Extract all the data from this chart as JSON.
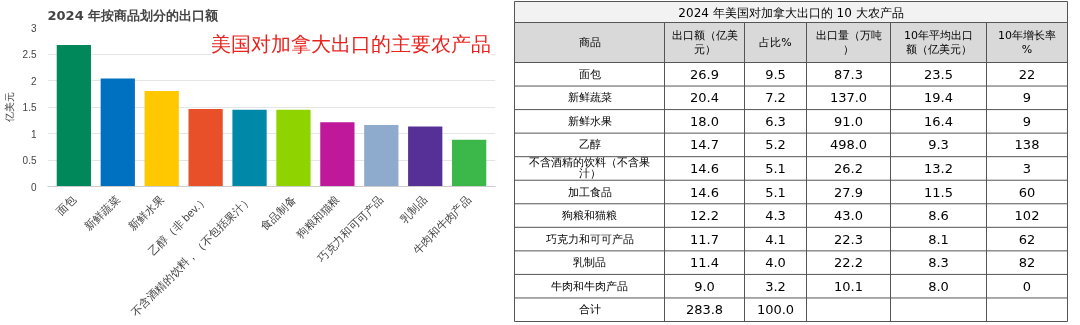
{
  "chart_data": [
    {
      "type": "bar",
      "title": "2024 年按商品划分的出口额",
      "ylabel": "亿美元",
      "categories": [
        "面包",
        "新鲜蔬菜",
        "新鲜水果",
        "乙醇（非 bev.）",
        "不含酒精的饮料，（不包括果汁）",
        "食品制备",
        "狗粮和猫粮",
        "巧克力和可可产品",
        "乳制品",
        "牛肉和牛肉产品"
      ],
      "values": [
        2.67,
        2.04,
        1.8,
        1.46,
        1.45,
        1.45,
        1.21,
        1.16,
        1.13,
        0.88
      ],
      "colors": [
        "#00875a",
        "#0070c0",
        "#ffc800",
        "#e8502a",
        "#0088a8",
        "#8fd400",
        "#c0189a",
        "#8eaacc",
        "#563096",
        "#3cb84a"
      ],
      "ylim": [
        0,
        3
      ],
      "yticks": [
        0,
        0.5,
        1,
        1.5,
        2,
        2.5,
        3
      ],
      "grid": "y",
      "annotations": [
        "美国对加拿大出口的主要农产品"
      ]
    },
    {
      "type": "heatmap",
      "title": "2024 年美国对加拿大出口的 10 大农产品",
      "ylabel": "商品",
      "categories": [
        "出口额（亿美元）",
        "占比%",
        "出口量（万吨）",
        "10年平均出口额（亿美元）",
        "10年增长率%"
      ],
      "y_categories": [
        "面包",
        "新鲜蔬菜",
        "新鲜水果",
        "乙醇",
        "不含酒精的饮料（不含果汁）",
        "加工食品",
        "狗粮和猫粮",
        "巧克力和可可产品",
        "乳制品",
        "牛肉和牛肉产品",
        "合计"
      ],
      "cells": [
        [
          26.9,
          9.5,
          87.3,
          23.5,
          22
        ],
        [
          20.4,
          7.2,
          137.0,
          19.4,
          9
        ],
        [
          18.0,
          6.3,
          91.0,
          16.4,
          9
        ],
        [
          14.7,
          5.2,
          498.0,
          9.3,
          138
        ],
        [
          14.6,
          5.1,
          26.2,
          13.2,
          3
        ],
        [
          14.6,
          5.1,
          27.9,
          11.5,
          60
        ],
        [
          12.2,
          4.3,
          43.0,
          8.6,
          102
        ],
        [
          11.7,
          4.1,
          22.3,
          8.1,
          62
        ],
        [
          11.4,
          4.0,
          22.2,
          8.3,
          82
        ],
        [
          9.0,
          3.2,
          10.1,
          8.0,
          0
        ],
        [
          283.8,
          100.0,
          null,
          null,
          null
        ]
      ],
      "cell_labels": [
        [
          "26.9",
          "9.5",
          "87.3",
          "23.5",
          "22"
        ],
        [
          "20.4",
          "7.2",
          "137.0",
          "19.4",
          "9"
        ],
        [
          "18.0",
          "6.3",
          "91.0",
          "16.4",
          "9"
        ],
        [
          "14.7",
          "5.2",
          "498.0",
          "9.3",
          "138"
        ],
        [
          "14.6",
          "5.1",
          "26.2",
          "13.2",
          "3"
        ],
        [
          "14.6",
          "5.1",
          "27.9",
          "11.5",
          "60"
        ],
        [
          "12.2",
          "4.3",
          "43.0",
          "8.6",
          "102"
        ],
        [
          "11.7",
          "4.1",
          "22.3",
          "8.1",
          "62"
        ],
        [
          "11.4",
          "4.0",
          "22.2",
          "8.3",
          "82"
        ],
        [
          "9.0",
          "3.2",
          "10.1",
          "8.0",
          "0"
        ],
        [
          "283.8",
          "100.0",
          null,
          null,
          null
        ]
      ]
    }
  ]
}
